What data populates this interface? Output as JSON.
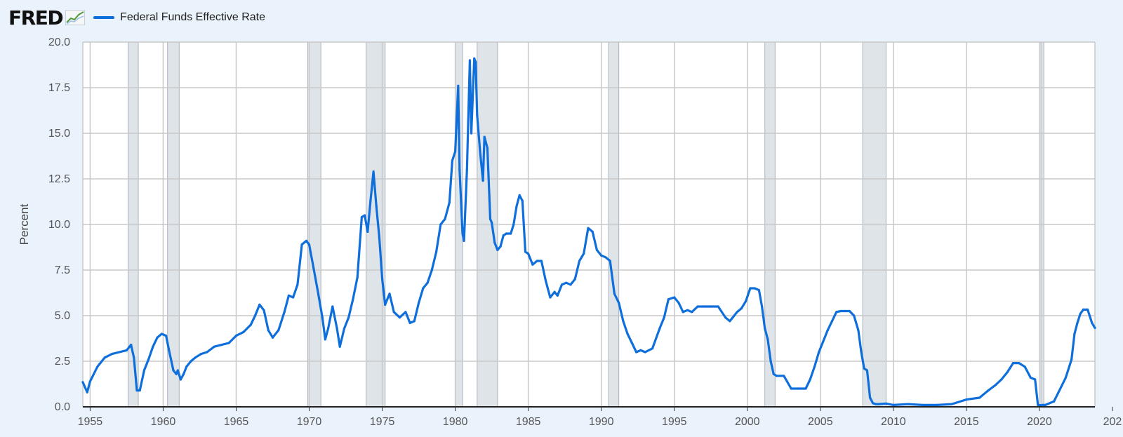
{
  "header": {
    "logo_text": "FRED",
    "logo_icon": "line-graph-icon"
  },
  "colors": {
    "series": "#0e6fdc",
    "recession": "#dfe4e9",
    "grid": "#c8c8c8",
    "plot_bg": "#ffffff",
    "page_bg": "#eaf2fb"
  },
  "chart_data": {
    "type": "line",
    "title": "",
    "xlabel": "",
    "ylabel": "Percent",
    "xlim": [
      1954.5,
      2023.8
    ],
    "ylim": [
      0,
      20
    ],
    "grid": true,
    "legend_placement": "top-left",
    "y_ticks": [
      "0.0",
      "2.5",
      "5.0",
      "7.5",
      "10.0",
      "12.5",
      "15.0",
      "17.5",
      "20.0"
    ],
    "x_ticks": [
      "1955",
      "1960",
      "1965",
      "1970",
      "1975",
      "1980",
      "1985",
      "1990",
      "1995",
      "2000",
      "2005",
      "2010",
      "2015",
      "2020",
      "202"
    ],
    "recessions": [
      [
        1957.6,
        1958.3
      ],
      [
        1960.3,
        1961.1
      ],
      [
        1969.9,
        1970.8
      ],
      [
        1973.9,
        1975.2
      ],
      [
        1980.0,
        1980.5
      ],
      [
        1981.5,
        1982.9
      ],
      [
        1990.5,
        1991.2
      ],
      [
        2001.2,
        2001.9
      ],
      [
        2007.9,
        2009.5
      ],
      [
        2020.1,
        2020.3
      ]
    ],
    "series": [
      {
        "name": "Federal Funds Effective Rate",
        "x": [
          1954.5,
          1954.8,
          1955.0,
          1955.5,
          1956.0,
          1956.5,
          1957.0,
          1957.5,
          1957.8,
          1958.0,
          1958.2,
          1958.4,
          1958.7,
          1959.0,
          1959.3,
          1959.6,
          1959.9,
          1960.2,
          1960.4,
          1960.7,
          1960.9,
          1961.0,
          1961.2,
          1961.4,
          1961.6,
          1961.9,
          1962.2,
          1962.6,
          1963.0,
          1963.5,
          1964.0,
          1964.5,
          1965.0,
          1965.5,
          1966.0,
          1966.3,
          1966.6,
          1966.9,
          1967.2,
          1967.5,
          1967.9,
          1968.3,
          1968.6,
          1968.9,
          1969.2,
          1969.5,
          1969.8,
          1970.0,
          1970.3,
          1970.6,
          1970.9,
          1971.1,
          1971.3,
          1971.6,
          1971.9,
          1972.1,
          1972.4,
          1972.7,
          1973.0,
          1973.3,
          1973.6,
          1973.8,
          1974.0,
          1974.2,
          1974.4,
          1974.6,
          1974.8,
          1975.0,
          1975.2,
          1975.5,
          1975.8,
          1976.2,
          1976.6,
          1976.9,
          1977.2,
          1977.5,
          1977.8,
          1978.1,
          1978.4,
          1978.7,
          1979.0,
          1979.3,
          1979.6,
          1979.8,
          1980.0,
          1980.2,
          1980.3,
          1980.5,
          1980.6,
          1980.8,
          1981.0,
          1981.1,
          1981.3,
          1981.4,
          1981.5,
          1981.7,
          1981.9,
          1982.0,
          1982.2,
          1982.4,
          1982.5,
          1982.7,
          1982.9,
          1983.1,
          1983.3,
          1983.5,
          1983.8,
          1984.0,
          1984.2,
          1984.4,
          1984.6,
          1984.8,
          1985.0,
          1985.3,
          1985.6,
          1985.9,
          1986.2,
          1986.5,
          1986.8,
          1987.0,
          1987.3,
          1987.6,
          1987.9,
          1988.2,
          1988.5,
          1988.8,
          1989.1,
          1989.4,
          1989.7,
          1990.0,
          1990.3,
          1990.6,
          1990.9,
          1991.2,
          1991.5,
          1991.8,
          1992.1,
          1992.4,
          1992.7,
          1993.0,
          1993.5,
          1994.0,
          1994.3,
          1994.6,
          1995.0,
          1995.3,
          1995.6,
          1995.9,
          1996.2,
          1996.6,
          1997.0,
          1997.5,
          1998.0,
          1998.5,
          1998.8,
          1999.0,
          1999.3,
          1999.6,
          1999.9,
          2000.2,
          2000.5,
          2000.8,
          2001.0,
          2001.2,
          2001.4,
          2001.6,
          2001.8,
          2002.0,
          2002.5,
          2003.0,
          2003.5,
          2004.0,
          2004.3,
          2004.6,
          2004.9,
          2005.2,
          2005.5,
          2005.8,
          2006.1,
          2006.4,
          2006.7,
          2007.0,
          2007.3,
          2007.6,
          2007.8,
          2008.0,
          2008.2,
          2008.4,
          2008.6,
          2008.8,
          2009.0,
          2009.5,
          2010.0,
          2011.0,
          2012.0,
          2013.0,
          2014.0,
          2015.0,
          2015.9,
          2016.5,
          2017.0,
          2017.4,
          2017.8,
          2018.2,
          2018.6,
          2019.0,
          2019.4,
          2019.7,
          2019.9,
          2020.1,
          2020.2,
          2020.4,
          2021.0,
          2021.8,
          2022.2,
          2022.4,
          2022.6,
          2022.8,
          2023.0,
          2023.3,
          2023.6,
          2023.8
        ],
        "values": [
          1.35,
          0.8,
          1.4,
          2.2,
          2.7,
          2.9,
          3.0,
          3.1,
          3.4,
          2.7,
          0.9,
          0.9,
          2.0,
          2.6,
          3.3,
          3.8,
          4.0,
          3.9,
          3.1,
          2.0,
          1.8,
          2.0,
          1.5,
          1.8,
          2.2,
          2.5,
          2.7,
          2.9,
          3.0,
          3.3,
          3.4,
          3.5,
          3.9,
          4.1,
          4.5,
          5.0,
          5.6,
          5.3,
          4.2,
          3.8,
          4.2,
          5.2,
          6.1,
          6.0,
          6.7,
          8.9,
          9.1,
          8.9,
          7.6,
          6.3,
          4.9,
          3.7,
          4.3,
          5.5,
          4.3,
          3.3,
          4.3,
          4.9,
          5.9,
          7.1,
          10.4,
          10.5,
          9.6,
          11.3,
          12.9,
          11.0,
          9.3,
          7.0,
          5.6,
          6.2,
          5.2,
          4.9,
          5.2,
          4.6,
          4.7,
          5.7,
          6.5,
          6.8,
          7.5,
          8.5,
          10.0,
          10.3,
          11.2,
          13.5,
          14.0,
          17.6,
          13.0,
          9.5,
          9.1,
          13.0,
          19.0,
          15.0,
          19.1,
          18.9,
          16.0,
          14.0,
          12.4,
          14.8,
          14.2,
          10.3,
          10.1,
          9.0,
          8.6,
          8.8,
          9.4,
          9.5,
          9.5,
          10.0,
          11.0,
          11.6,
          11.3,
          8.5,
          8.4,
          7.8,
          8.0,
          8.0,
          6.9,
          6.0,
          6.3,
          6.1,
          6.7,
          6.8,
          6.7,
          7.0,
          8.0,
          8.4,
          9.8,
          9.6,
          8.6,
          8.3,
          8.2,
          8.0,
          6.2,
          5.7,
          4.7,
          4.0,
          3.5,
          3.0,
          3.1,
          3.0,
          3.2,
          4.3,
          4.9,
          5.9,
          6.0,
          5.7,
          5.2,
          5.3,
          5.2,
          5.5,
          5.5,
          5.5,
          5.5,
          4.9,
          4.7,
          4.9,
          5.2,
          5.4,
          5.8,
          6.5,
          6.5,
          6.4,
          5.5,
          4.3,
          3.7,
          2.5,
          1.8,
          1.7,
          1.7,
          1.0,
          1.0,
          1.0,
          1.5,
          2.2,
          3.0,
          3.6,
          4.2,
          4.7,
          5.2,
          5.25,
          5.25,
          5.25,
          5.0,
          4.2,
          3.0,
          2.1,
          2.0,
          0.5,
          0.2,
          0.15,
          0.15,
          0.18,
          0.1,
          0.15,
          0.1,
          0.1,
          0.15,
          0.4,
          0.5,
          0.9,
          1.2,
          1.5,
          1.9,
          2.4,
          2.4,
          2.2,
          1.6,
          1.5,
          0.1,
          0.08,
          0.1,
          0.1,
          0.3,
          1.6,
          2.6,
          4.0,
          4.6,
          5.1,
          5.33,
          5.33,
          4.6,
          4.33
        ]
      }
    ]
  }
}
